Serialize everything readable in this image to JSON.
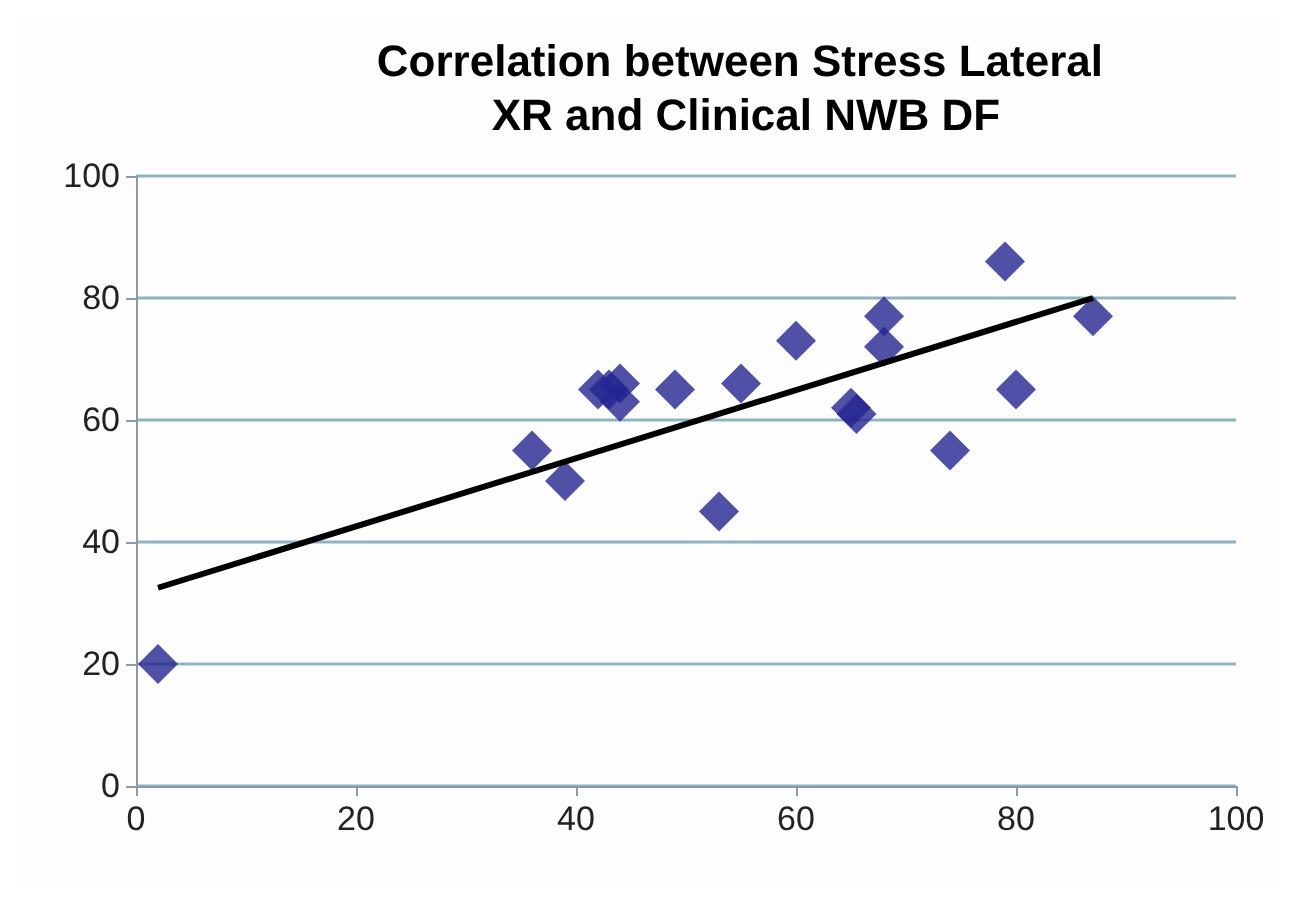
{
  "chart_data": {
    "type": "scatter",
    "title": "Correlation between Stress Lateral XR and Clinical NWB DF",
    "xlim": [
      0,
      100
    ],
    "xticks": [
      0,
      20,
      40,
      60,
      80,
      100
    ],
    "ylim": [
      0,
      100
    ],
    "yticks": [
      0,
      20,
      40,
      60,
      80,
      100
    ],
    "grid": "y",
    "marker": "diamond",
    "series": [
      {
        "color": "#232490",
        "x": [
          2,
          36,
          39,
          42,
          43,
          44,
          44,
          49,
          53,
          55,
          60,
          65,
          65.5,
          68,
          68,
          74,
          79,
          80,
          87
        ],
        "values": [
          20,
          55,
          50,
          65,
          65,
          66,
          63,
          65,
          45,
          66,
          73,
          62,
          61,
          77,
          72,
          55,
          86,
          65,
          77
        ]
      },
      {
        "type": "line",
        "color": "#000000",
        "marker": "none",
        "x": [
          2,
          87
        ],
        "values": [
          32.5,
          80
        ]
      }
    ]
  }
}
